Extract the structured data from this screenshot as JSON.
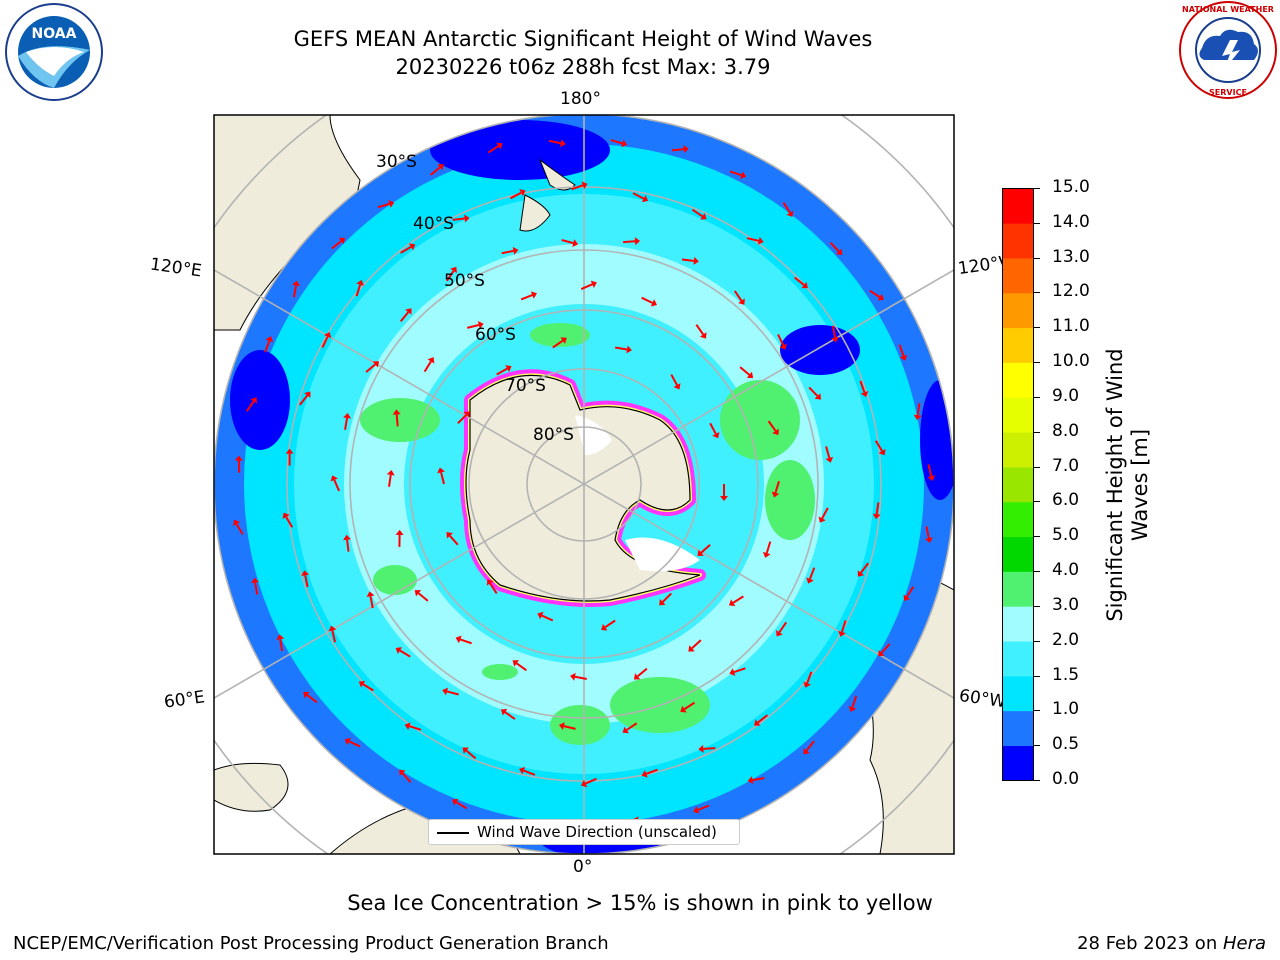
{
  "title": {
    "line1": "GEFS MEAN Antarctic Significant Height of Wind Waves",
    "line2": "20230226 t06z 288h fcst   Max: 3.79"
  },
  "map": {
    "longitude_labels": {
      "top": "180°",
      "bottom": "0°",
      "upper_left": "120°E",
      "upper_right": "120°W",
      "lower_left": "60°E",
      "lower_right": "60°W"
    },
    "latitude_labels": [
      "30°S",
      "40°S",
      "50°S",
      "60°S",
      "70°S",
      "80°S"
    ],
    "legend": "Wind Wave Direction (unscaled)",
    "colors": {
      "land": "#efecdc",
      "ice_core": "#ffffff",
      "ice_edge": [
        "#ff33ff",
        "#ffaaff",
        "#ffff66"
      ],
      "arrows": "#ff0000",
      "graticule": "#b3b3b3"
    }
  },
  "colorbar": {
    "title": "Significant Height of Wind Waves [m]",
    "ticks": [
      "0.0",
      "0.5",
      "1.0",
      "1.5",
      "2.0",
      "3.0",
      "4.0",
      "5.0",
      "6.0",
      "7.0",
      "8.0",
      "9.0",
      "10.0",
      "11.0",
      "12.0",
      "13.0",
      "14.0",
      "15.0"
    ],
    "colors": [
      "#0000ff",
      "#1e78ff",
      "#00e5ff",
      "#40f0ff",
      "#a0fcff",
      "#50f070",
      "#00d800",
      "#33ee00",
      "#99e600",
      "#ccf000",
      "#e6ff00",
      "#ffff00",
      "#ffcc00",
      "#ff9900",
      "#ff6600",
      "#ff3300",
      "#ff0000"
    ]
  },
  "caption": "Sea Ice Concentration > 15% is shown in pink to yellow",
  "footer": {
    "left": "NCEP/EMC/Verification Post Processing Product Generation Branch",
    "right_date": "28 Feb 2023 on ",
    "right_host": "Hera"
  },
  "logos": {
    "left": "NOAA",
    "right": "NATIONAL WEATHER SERVICE"
  }
}
